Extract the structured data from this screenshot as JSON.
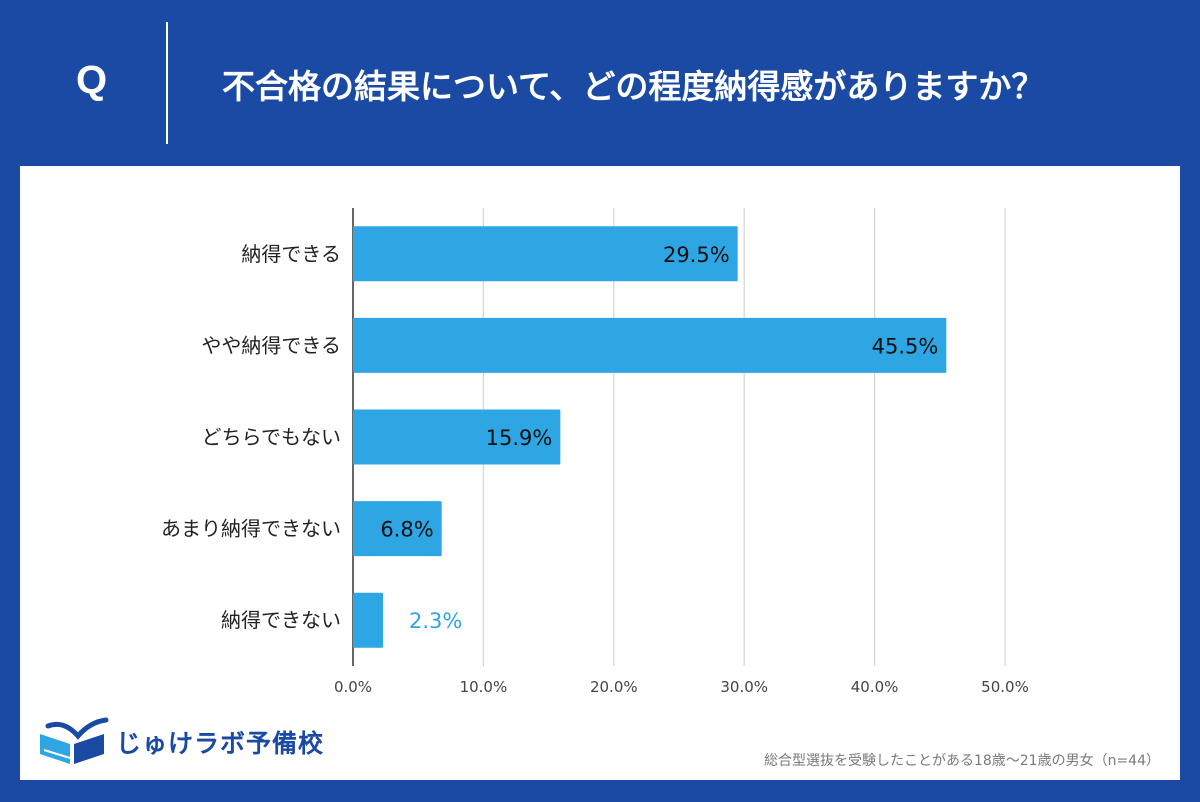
{
  "header": {
    "q_mark": "Q",
    "question": "不合格の結果について、どの程度納得感がありますか？"
  },
  "chart_data": {
    "type": "bar",
    "orientation": "horizontal",
    "categories": [
      "納得できる",
      "やや納得できる",
      "どちらでもない",
      "あまり納得できない",
      "納得できない"
    ],
    "values": [
      29.5,
      45.5,
      15.9,
      6.8,
      2.3
    ],
    "value_labels": [
      "29.5%",
      "45.5%",
      "15.9%",
      "6.8%",
      "2.3%"
    ],
    "xlim": [
      0,
      50
    ],
    "x_ticks": [
      0,
      10,
      20,
      30,
      40,
      50
    ],
    "x_tick_labels": [
      "0.0%",
      "10.0%",
      "20.0%",
      "30.0%",
      "40.0%",
      "50.0%"
    ],
    "grid": true,
    "bar_color": "#2ea6e3"
  },
  "footer": {
    "logo_text": "じゅけラボ予備校",
    "note": "総合型選抜を受験したことがある18歳～21歳の男女（n=44）"
  },
  "colors": {
    "header_bg": "#1a4aa3",
    "panel_bg": "#ffffff",
    "bar": "#2ea6e3",
    "label_text": "#222222",
    "outside_label": "#2ea6e3",
    "grid": "#d6d6d6"
  },
  "icons": {
    "logo": "open-book-logo-icon"
  }
}
